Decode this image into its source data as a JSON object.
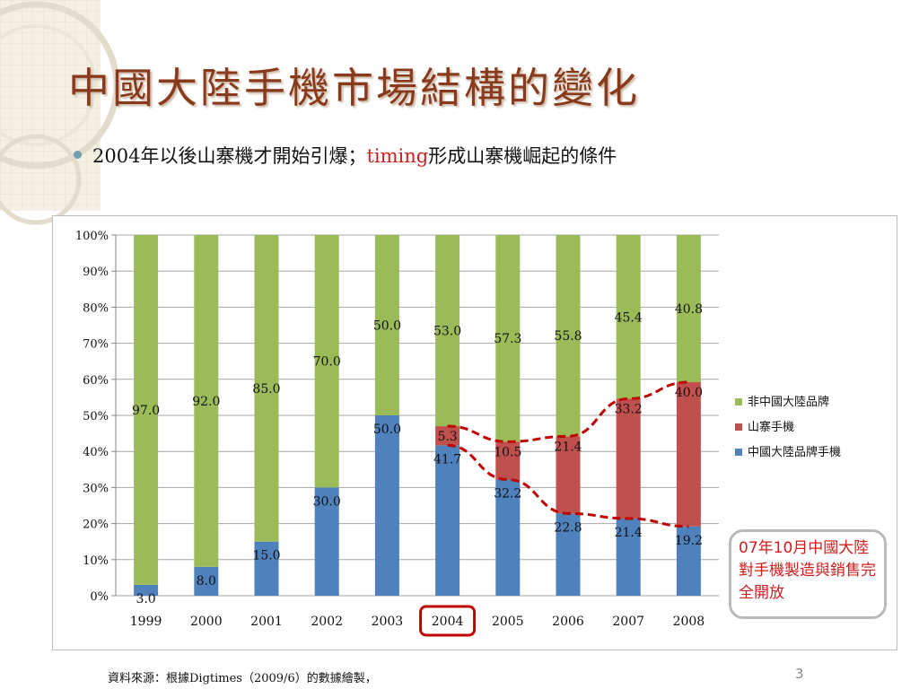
{
  "slide": {
    "title": "中國大陸手機市場結構的變化",
    "bullet": {
      "part1": "2004年以後山寨機才開始引爆；",
      "highlight": "timing",
      "part2": "形成山寨機崛起的條件"
    },
    "callout_text": "07年10月中國大陸對手機製造與銷售完全開放",
    "source": "資料來源：根據Digtimes（2009/6）的數據繪製，",
    "page_number": "3"
  },
  "colors": {
    "title": "#8a3a1c",
    "green": "#9bbb59",
    "red": "#c0504d",
    "blue": "#4f81bd",
    "trend_line": "#c00000",
    "highlight_box": "#c00000"
  },
  "chart_data": {
    "type": "bar",
    "stacked": true,
    "categories": [
      "1999",
      "2000",
      "2001",
      "2002",
      "2003",
      "2004",
      "2005",
      "2006",
      "2007",
      "2008"
    ],
    "series": [
      {
        "name": "中國大陸品牌手機",
        "color": "#4f81bd",
        "values": [
          3.0,
          8.0,
          15.0,
          30.0,
          50.0,
          41.7,
          32.2,
          22.8,
          21.4,
          19.2
        ]
      },
      {
        "name": "山寨手機",
        "color": "#c0504d",
        "values": [
          0,
          0,
          0,
          0,
          0,
          5.3,
          10.5,
          21.4,
          33.2,
          40.0
        ]
      },
      {
        "name": "非中國大陸品牌",
        "color": "#9bbb59",
        "values": [
          97.0,
          92.0,
          85.0,
          70.0,
          50.0,
          53.0,
          57.3,
          55.8,
          45.4,
          40.8
        ]
      }
    ],
    "data_labels": {
      "中國大陸品牌手機": [
        "3.0",
        "8.0",
        "15.0",
        "30.0",
        "50.0",
        "41.7",
        "32.2",
        "22.8",
        "21.4",
        "19.2"
      ],
      "山寨手機": [
        "",
        "",
        "",
        "",
        "",
        "5.3",
        "10.5",
        "21.4",
        "33.2",
        "40.0"
      ],
      "非中國大陸品牌": [
        "97.0",
        "92.0",
        "85.0",
        "70.0",
        "50.0",
        "53.0",
        "57.3",
        "55.8",
        "45.4",
        "40.8"
      ]
    },
    "y_ticks": [
      "0%",
      "10%",
      "20%",
      "30%",
      "40%",
      "50%",
      "60%",
      "70%",
      "80%",
      "90%",
      "100%"
    ],
    "ylim": [
      0,
      100
    ],
    "legend": {
      "placement": "right",
      "entries": [
        "非中國大陸品牌",
        "山寨手機",
        "中國大陸品牌手機"
      ]
    },
    "grid": true,
    "highlighted_category": "2004",
    "trend_lines": [
      "山寨手機 top boundary 2004–2008",
      "山寨手機 bottom boundary 2004–2008"
    ]
  }
}
